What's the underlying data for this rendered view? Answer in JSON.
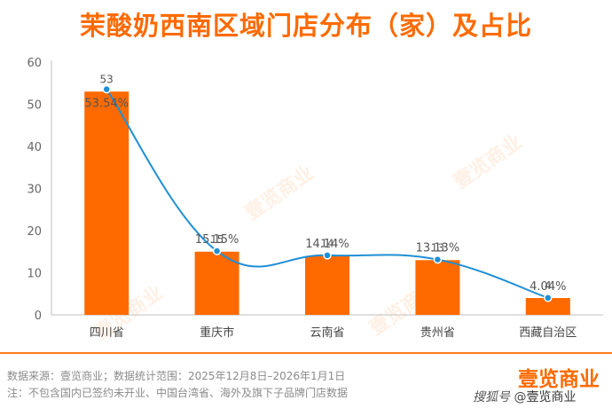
{
  "title": "茉酸奶西南区域门店分布（家）及占比",
  "chart_data": {
    "type": "bar",
    "categories": [
      "四川省",
      "重庆市",
      "云南省",
      "贵州省",
      "西藏自治区"
    ],
    "values": [
      53,
      15,
      14,
      13,
      4
    ],
    "value_labels": [
      "53",
      "15",
      "14",
      "13",
      "4"
    ],
    "line_series": {
      "values": [
        53.54,
        15.15,
        14.14,
        13.13,
        4.04
      ],
      "labels": [
        "53.54%",
        "15.15%",
        "14.14%",
        "13.13%",
        "4.04%"
      ]
    },
    "yticks": [
      "0",
      "10",
      "20",
      "30",
      "40",
      "50",
      "60"
    ],
    "ylim": [
      0,
      60
    ],
    "grid": false,
    "colors": {
      "bar": "#ff6a00",
      "line": "#1f8fd6",
      "title": "#ff6a00"
    }
  },
  "footer": {
    "line1": "数据来源：壹览商业；数据统计范围：2025年12月8日–2026年1月1日",
    "line2": "注：不包含国内已签约未开业、中国台湾省、海外及旗下子品牌门店数据"
  },
  "brand": "壹览商业",
  "credit": {
    "source": "搜狐号",
    "at": "@",
    "name": "壹览商业"
  },
  "watermark": "壹览商业"
}
